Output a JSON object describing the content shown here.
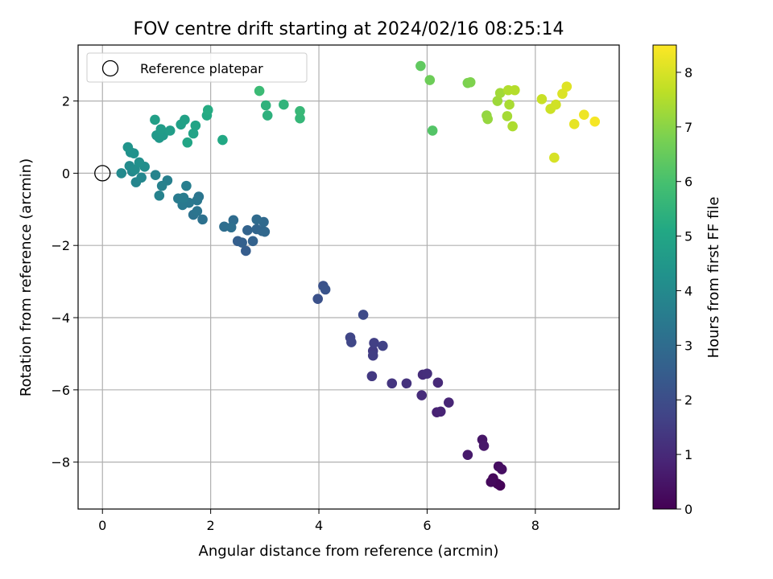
{
  "chart_data": {
    "type": "scatter",
    "title": "FOV centre drift starting at 2024/02/16 08:25:14",
    "xlabel": "Angular distance from reference (arcmin)",
    "ylabel": "Rotation from reference (arcmin)",
    "colorbar_label": "Hours from first FF file",
    "xlim": [
      -0.45,
      9.55
    ],
    "ylim": [
      -9.3,
      3.55
    ],
    "clim": [
      0,
      8.5
    ],
    "colormap": "viridis",
    "grid": true,
    "legend_position": "upper-left",
    "x_ticks": [
      0,
      2,
      4,
      6,
      8
    ],
    "y_ticks": [
      -8,
      -6,
      -4,
      -2,
      0,
      2
    ],
    "c_ticks": [
      0,
      1,
      2,
      3,
      4,
      5,
      6,
      7,
      8
    ],
    "legend": {
      "label": "Reference platepar",
      "marker": "open-circle"
    },
    "reference_point": {
      "x": 0,
      "y": 0
    },
    "points": [
      {
        "x": 7.35,
        "y": -8.65,
        "c": 0.05
      },
      {
        "x": 7.3,
        "y": -8.6,
        "c": 0.1
      },
      {
        "x": 7.22,
        "y": -8.45,
        "c": 0.15
      },
      {
        "x": 7.18,
        "y": -8.55,
        "c": 0.2
      },
      {
        "x": 7.32,
        "y": -8.12,
        "c": 0.3
      },
      {
        "x": 7.38,
        "y": -8.2,
        "c": 0.35
      },
      {
        "x": 7.02,
        "y": -7.38,
        "c": 0.5
      },
      {
        "x": 7.05,
        "y": -7.55,
        "c": 0.55
      },
      {
        "x": 6.75,
        "y": -7.8,
        "c": 0.6
      },
      {
        "x": 6.18,
        "y": -6.62,
        "c": 0.8
      },
      {
        "x": 6.25,
        "y": -6.6,
        "c": 0.85
      },
      {
        "x": 6.4,
        "y": -6.35,
        "c": 0.9
      },
      {
        "x": 6.2,
        "y": -5.8,
        "c": 1.0
      },
      {
        "x": 5.9,
        "y": -6.15,
        "c": 1.05
      },
      {
        "x": 5.92,
        "y": -5.58,
        "c": 1.1
      },
      {
        "x": 6.0,
        "y": -5.55,
        "c": 1.15
      },
      {
        "x": 5.62,
        "y": -5.82,
        "c": 1.25
      },
      {
        "x": 5.35,
        "y": -5.82,
        "c": 1.3
      },
      {
        "x": 4.98,
        "y": -5.62,
        "c": 1.4
      },
      {
        "x": 5.0,
        "y": -4.92,
        "c": 1.5
      },
      {
        "x": 5.0,
        "y": -5.05,
        "c": 1.55
      },
      {
        "x": 5.02,
        "y": -4.7,
        "c": 1.6
      },
      {
        "x": 5.18,
        "y": -4.78,
        "c": 1.65
      },
      {
        "x": 4.58,
        "y": -4.55,
        "c": 1.75
      },
      {
        "x": 4.6,
        "y": -4.68,
        "c": 1.8
      },
      {
        "x": 4.82,
        "y": -3.92,
        "c": 1.9
      },
      {
        "x": 3.98,
        "y": -3.48,
        "c": 2.1
      },
      {
        "x": 4.08,
        "y": -3.12,
        "c": 2.15
      },
      {
        "x": 4.12,
        "y": -3.22,
        "c": 2.2
      },
      {
        "x": 2.65,
        "y": -2.15,
        "c": 2.5
      },
      {
        "x": 2.5,
        "y": -1.88,
        "c": 2.55
      },
      {
        "x": 2.58,
        "y": -1.92,
        "c": 2.6
      },
      {
        "x": 2.78,
        "y": -1.88,
        "c": 2.65
      },
      {
        "x": 2.68,
        "y": -1.58,
        "c": 2.7
      },
      {
        "x": 2.85,
        "y": -1.55,
        "c": 2.75
      },
      {
        "x": 2.95,
        "y": -1.6,
        "c": 2.8
      },
      {
        "x": 3.0,
        "y": -1.62,
        "c": 2.85
      },
      {
        "x": 2.98,
        "y": -1.35,
        "c": 2.9
      },
      {
        "x": 2.85,
        "y": -1.28,
        "c": 2.95
      },
      {
        "x": 2.42,
        "y": -1.3,
        "c": 3.0
      },
      {
        "x": 2.25,
        "y": -1.48,
        "c": 3.05
      },
      {
        "x": 2.38,
        "y": -1.5,
        "c": 3.1
      },
      {
        "x": 1.85,
        "y": -1.28,
        "c": 3.15
      },
      {
        "x": 1.68,
        "y": -1.15,
        "c": 3.2
      },
      {
        "x": 1.75,
        "y": -1.05,
        "c": 3.25
      },
      {
        "x": 1.78,
        "y": -0.65,
        "c": 3.3
      },
      {
        "x": 1.75,
        "y": -0.75,
        "c": 3.35
      },
      {
        "x": 1.6,
        "y": -0.82,
        "c": 3.4
      },
      {
        "x": 1.48,
        "y": -0.88,
        "c": 3.45
      },
      {
        "x": 1.4,
        "y": -0.7,
        "c": 3.5
      },
      {
        "x": 1.5,
        "y": -0.68,
        "c": 3.55
      },
      {
        "x": 1.55,
        "y": -0.35,
        "c": 3.6
      },
      {
        "x": 1.2,
        "y": -0.2,
        "c": 3.65
      },
      {
        "x": 1.1,
        "y": -0.35,
        "c": 3.7
      },
      {
        "x": 1.05,
        "y": -0.62,
        "c": 3.75
      },
      {
        "x": 0.98,
        "y": -0.05,
        "c": 3.8
      },
      {
        "x": 0.62,
        "y": -0.25,
        "c": 3.85
      },
      {
        "x": 0.72,
        "y": -0.12,
        "c": 3.9
      },
      {
        "x": 0.55,
        "y": 0.05,
        "c": 3.95
      },
      {
        "x": 0.35,
        "y": 0.0,
        "c": 4.0
      },
      {
        "x": 0.5,
        "y": 0.2,
        "c": 4.05
      },
      {
        "x": 0.6,
        "y": 0.1,
        "c": 4.1
      },
      {
        "x": 0.78,
        "y": 0.18,
        "c": 4.15
      },
      {
        "x": 0.68,
        "y": 0.3,
        "c": 4.2
      },
      {
        "x": 0.52,
        "y": 0.58,
        "c": 4.25
      },
      {
        "x": 0.58,
        "y": 0.55,
        "c": 4.3
      },
      {
        "x": 0.47,
        "y": 0.72,
        "c": 4.35
      },
      {
        "x": 1.05,
        "y": 0.98,
        "c": 4.5
      },
      {
        "x": 1.0,
        "y": 1.05,
        "c": 4.55
      },
      {
        "x": 1.12,
        "y": 1.05,
        "c": 4.6
      },
      {
        "x": 1.08,
        "y": 1.22,
        "c": 4.65
      },
      {
        "x": 1.25,
        "y": 1.18,
        "c": 4.7
      },
      {
        "x": 0.97,
        "y": 1.48,
        "c": 4.75
      },
      {
        "x": 1.45,
        "y": 1.35,
        "c": 4.8
      },
      {
        "x": 1.52,
        "y": 1.48,
        "c": 4.85
      },
      {
        "x": 1.68,
        "y": 1.1,
        "c": 4.9
      },
      {
        "x": 1.72,
        "y": 1.32,
        "c": 4.95
      },
      {
        "x": 1.57,
        "y": 0.85,
        "c": 5.0
      },
      {
        "x": 2.22,
        "y": 0.92,
        "c": 5.1
      },
      {
        "x": 1.93,
        "y": 1.6,
        "c": 5.15
      },
      {
        "x": 1.95,
        "y": 1.75,
        "c": 5.2
      },
      {
        "x": 3.05,
        "y": 1.6,
        "c": 5.4
      },
      {
        "x": 3.02,
        "y": 1.88,
        "c": 5.45
      },
      {
        "x": 3.35,
        "y": 1.9,
        "c": 5.5
      },
      {
        "x": 3.65,
        "y": 1.52,
        "c": 5.6
      },
      {
        "x": 3.65,
        "y": 1.72,
        "c": 5.65
      },
      {
        "x": 2.9,
        "y": 2.28,
        "c": 5.75
      },
      {
        "x": 6.1,
        "y": 1.18,
        "c": 6.2
      },
      {
        "x": 5.88,
        "y": 2.97,
        "c": 6.4
      },
      {
        "x": 6.05,
        "y": 2.58,
        "c": 6.6
      },
      {
        "x": 6.75,
        "y": 2.5,
        "c": 6.8
      },
      {
        "x": 6.8,
        "y": 2.52,
        "c": 6.85
      },
      {
        "x": 7.1,
        "y": 1.6,
        "c": 7.1
      },
      {
        "x": 7.12,
        "y": 1.5,
        "c": 7.15
      },
      {
        "x": 7.3,
        "y": 2.0,
        "c": 7.25
      },
      {
        "x": 7.35,
        "y": 2.22,
        "c": 7.3
      },
      {
        "x": 7.48,
        "y": 1.58,
        "c": 7.35
      },
      {
        "x": 7.52,
        "y": 1.9,
        "c": 7.4
      },
      {
        "x": 7.58,
        "y": 1.3,
        "c": 7.45
      },
      {
        "x": 7.5,
        "y": 2.3,
        "c": 7.5
      },
      {
        "x": 7.62,
        "y": 2.3,
        "c": 7.55
      },
      {
        "x": 8.12,
        "y": 2.05,
        "c": 7.8
      },
      {
        "x": 8.28,
        "y": 1.78,
        "c": 7.85
      },
      {
        "x": 8.38,
        "y": 1.9,
        "c": 7.9
      },
      {
        "x": 8.35,
        "y": 0.43,
        "c": 8.0
      },
      {
        "x": 8.5,
        "y": 2.2,
        "c": 8.05
      },
      {
        "x": 8.58,
        "y": 2.4,
        "c": 8.1
      },
      {
        "x": 8.72,
        "y": 1.36,
        "c": 8.2
      },
      {
        "x": 8.9,
        "y": 1.62,
        "c": 8.3
      },
      {
        "x": 9.1,
        "y": 1.43,
        "c": 8.4
      }
    ]
  }
}
